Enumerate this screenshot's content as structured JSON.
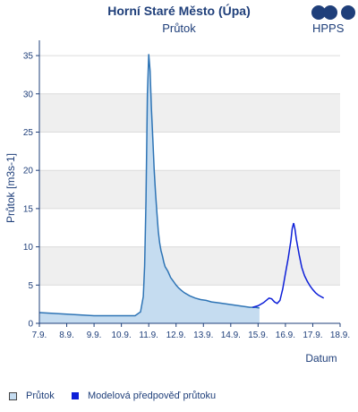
{
  "header": {
    "title": "Horní Staré Město (Úpa)",
    "subtitle": "Průtok",
    "logo_text": "HPPS"
  },
  "legend": {
    "observed_label": "Průtok",
    "model_label": "Modelová předpověď průtoku"
  },
  "colors": {
    "observed_line": "#2e74b5",
    "observed_fill": "#c5dcf0",
    "model_line": "#0d1fd8",
    "band": "#efefef",
    "axis": "#1f3f7a"
  },
  "chart_data": {
    "type": "line",
    "xlabel": "Datum",
    "ylabel": "Průtok [m3s-1]",
    "ylim": [
      0,
      37
    ],
    "xlim": [
      7,
      18
    ],
    "yticks": [
      0,
      5,
      10,
      15,
      20,
      25,
      30,
      35
    ],
    "x_tick_labels": [
      "7.9.",
      "8.9.",
      "9.9.",
      "10.9.",
      "11.9.",
      "12.9.",
      "13.9.",
      "14.9.",
      "15.9.",
      "16.9.",
      "17.9.",
      "18.9."
    ],
    "grid": true,
    "legend_position": "bottom",
    "series": [
      {
        "name": "Průtok",
        "x": [
          7.0,
          7.5,
          8.0,
          8.5,
          9.0,
          9.5,
          10.0,
          10.5,
          10.7,
          10.8,
          10.85,
          10.9,
          10.95,
          11.0,
          11.05,
          11.1,
          11.15,
          11.2,
          11.25,
          11.3,
          11.35,
          11.4,
          11.45,
          11.5,
          11.55,
          11.6,
          11.7,
          11.8,
          11.9,
          12.0,
          12.1,
          12.2,
          12.3,
          12.5,
          12.7,
          12.9,
          13.1,
          13.3,
          13.5,
          13.7,
          13.9,
          14.1,
          14.3,
          14.5,
          14.7,
          14.9,
          15.05
        ],
        "values": [
          1.4,
          1.3,
          1.2,
          1.1,
          1.0,
          1.0,
          1.0,
          1.0,
          1.5,
          3.5,
          7.5,
          16.0,
          30.0,
          35.2,
          33.0,
          28.0,
          24.0,
          20.0,
          17.0,
          14.5,
          12.0,
          10.5,
          9.5,
          8.8,
          8.0,
          7.4,
          6.8,
          6.0,
          5.5,
          5.0,
          4.6,
          4.3,
          4.0,
          3.6,
          3.3,
          3.1,
          3.0,
          2.8,
          2.7,
          2.6,
          2.5,
          2.4,
          2.3,
          2.2,
          2.1,
          2.1,
          2.0
        ]
      },
      {
        "name": "Modelová předpověď průtoku",
        "x": [
          14.8,
          15.0,
          15.2,
          15.4,
          15.5,
          15.6,
          15.7,
          15.8,
          15.9,
          16.0,
          16.1,
          16.2,
          16.25,
          16.3,
          16.35,
          16.4,
          16.5,
          16.6,
          16.7,
          16.8,
          16.9,
          17.0,
          17.1,
          17.2,
          17.3,
          17.4
        ],
        "values": [
          2.1,
          2.3,
          2.7,
          3.3,
          3.2,
          2.8,
          2.6,
          3.0,
          4.5,
          6.5,
          8.5,
          10.8,
          12.4,
          13.1,
          12.3,
          11.0,
          9.0,
          7.3,
          6.2,
          5.5,
          4.9,
          4.4,
          4.0,
          3.7,
          3.5,
          3.3
        ]
      }
    ]
  }
}
